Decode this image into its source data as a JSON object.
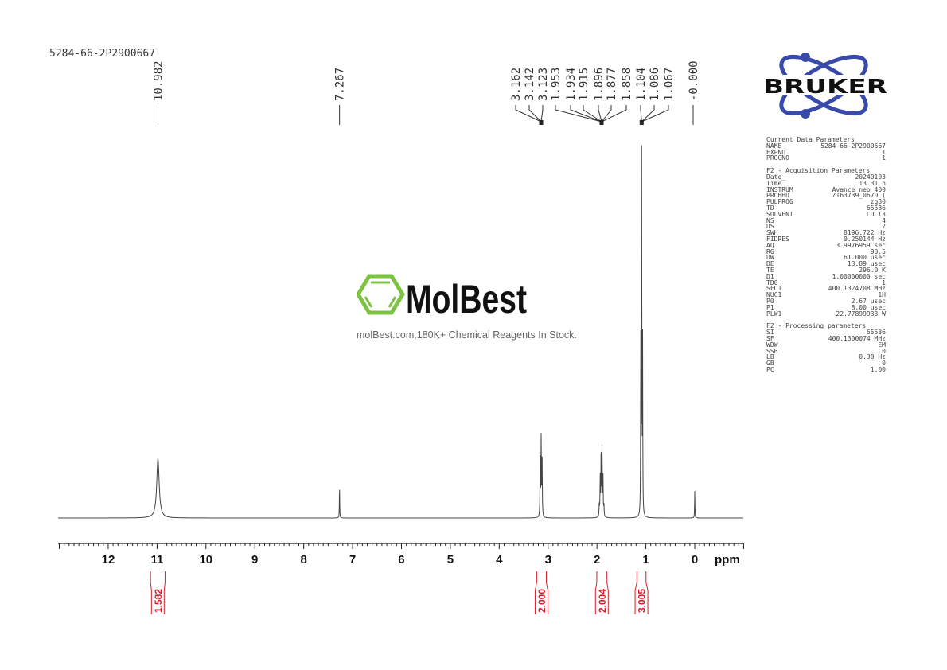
{
  "title": "5284-66-2P2900667",
  "brand_logo": {
    "text": "BRUKER",
    "color_orbit": "#3a4aa8",
    "color_text": "#111111"
  },
  "watermark": {
    "logo_text": "MolBest",
    "tagline": "molBest.com,180K+ Chemical Reagents In Stock.",
    "color_ring": "#7dc242"
  },
  "parameters": {
    "current_title": "Current Data Parameters",
    "current": [
      [
        "NAME",
        "5284-66-2P2900667"
      ],
      [
        "EXPNO",
        "1"
      ],
      [
        "PROCNO",
        "1"
      ]
    ],
    "acq_title": "F2 - Acquisition Parameters",
    "acq": [
      [
        "Date_",
        "20240103"
      ],
      [
        "Time",
        "13.31 h"
      ],
      [
        "INSTRUM",
        "Avance neo 400"
      ],
      [
        "PROBHD",
        "Z163739_0670 ("
      ],
      [
        "PULPROG",
        "zg30"
      ],
      [
        "TD",
        "65536"
      ],
      [
        "SOLVENT",
        "CDCl3"
      ],
      [
        "NS",
        "4"
      ],
      [
        "DS",
        "2"
      ],
      [
        "SWH",
        "8196.722 Hz"
      ],
      [
        "FIDRES",
        "0.250144 Hz"
      ],
      [
        "AQ",
        "3.9976959 sec"
      ],
      [
        "RG",
        "90.5"
      ],
      [
        "DW",
        "61.000 usec"
      ],
      [
        "DE",
        "13.89 usec"
      ],
      [
        "TE",
        "296.0 K"
      ],
      [
        "D1",
        "1.00000000 sec"
      ],
      [
        "TD0",
        "1"
      ],
      [
        "SFO1",
        "400.1324708 MHz"
      ],
      [
        "NUC1",
        "1H"
      ],
      [
        "P0",
        "2.67 usec"
      ],
      [
        "P1",
        "8.00 usec"
      ],
      [
        "PLW1",
        "22.77899933 W"
      ]
    ],
    "proc_title": "F2 - Processing parameters",
    "proc": [
      [
        "SI",
        "65536"
      ],
      [
        "SF",
        "400.1300074 MHz"
      ],
      [
        "WDW",
        "EM"
      ],
      [
        "SSB",
        "0"
      ],
      [
        "LB",
        "0.30 Hz"
      ],
      [
        "GB",
        "0"
      ],
      [
        "PC",
        "1.00"
      ]
    ]
  },
  "chart_data": {
    "type": "line",
    "xlabel": "ppm",
    "xlim": [
      13.0,
      -1.0
    ],
    "x_reversed": true,
    "xticks": [
      "12",
      "11",
      "10",
      "9",
      "8",
      "7",
      "6",
      "5",
      "4",
      "3",
      "2",
      "1",
      "0"
    ],
    "grid": false,
    "line_color": "#444444",
    "peaks": [
      {
        "ppm": 10.982,
        "intensity": 0.153,
        "width": 0.03
      },
      {
        "ppm": 7.267,
        "intensity": 0.082,
        "width": 0.004
      },
      {
        "ppm": 3.162,
        "intensity": 0.15,
        "width": 0.005
      },
      {
        "ppm": 3.142,
        "intensity": 0.2,
        "width": 0.005
      },
      {
        "ppm": 3.123,
        "intensity": 0.15,
        "width": 0.005
      },
      {
        "ppm": 1.953,
        "intensity": 0.03,
        "width": 0.005
      },
      {
        "ppm": 1.934,
        "intensity": 0.1,
        "width": 0.005
      },
      {
        "ppm": 1.915,
        "intensity": 0.17,
        "width": 0.005
      },
      {
        "ppm": 1.896,
        "intensity": 0.17,
        "width": 0.005
      },
      {
        "ppm": 1.877,
        "intensity": 0.1,
        "width": 0.005
      },
      {
        "ppm": 1.858,
        "intensity": 0.03,
        "width": 0.005
      },
      {
        "ppm": 1.104,
        "intensity": 0.45,
        "width": 0.004
      },
      {
        "ppm": 1.086,
        "intensity": 0.95,
        "width": 0.004
      },
      {
        "ppm": 1.067,
        "intensity": 0.45,
        "width": 0.004
      },
      {
        "ppm": 0.0,
        "intensity": 0.069,
        "width": 0.004
      }
    ],
    "peak_labels": [
      {
        "text": "10.982",
        "ppm": 10.982,
        "group": 0
      },
      {
        "text": "7.267",
        "ppm": 7.267,
        "group": 1
      },
      {
        "text": "3.162",
        "ppm": 3.142,
        "group": 2
      },
      {
        "text": "3.142",
        "ppm": 3.142,
        "group": 2
      },
      {
        "text": "3.123",
        "ppm": 3.142,
        "group": 2
      },
      {
        "text": "1.953",
        "ppm": 1.905,
        "group": 3
      },
      {
        "text": "1.934",
        "ppm": 1.905,
        "group": 3
      },
      {
        "text": "1.915",
        "ppm": 1.905,
        "group": 3
      },
      {
        "text": "1.896",
        "ppm": 1.905,
        "group": 3
      },
      {
        "text": "1.877",
        "ppm": 1.905,
        "group": 3
      },
      {
        "text": "1.858",
        "ppm": 1.905,
        "group": 3
      },
      {
        "text": "1.104",
        "ppm": 1.086,
        "group": 4
      },
      {
        "text": "1.086",
        "ppm": 1.086,
        "group": 4
      },
      {
        "text": "1.067",
        "ppm": 1.086,
        "group": 4
      },
      {
        "text": "-0.000",
        "ppm": 0.0,
        "group": 5
      }
    ],
    "integrals": [
      {
        "value": "1.582",
        "from": 11.15,
        "to": 10.82
      },
      {
        "value": "2.000",
        "from": 3.25,
        "to": 3.02
      },
      {
        "value": "2.004",
        "from": 2.02,
        "to": 1.78
      },
      {
        "value": "3.005",
        "from": 1.2,
        "to": 0.98
      }
    ],
    "integral_color": "#d8202a"
  }
}
